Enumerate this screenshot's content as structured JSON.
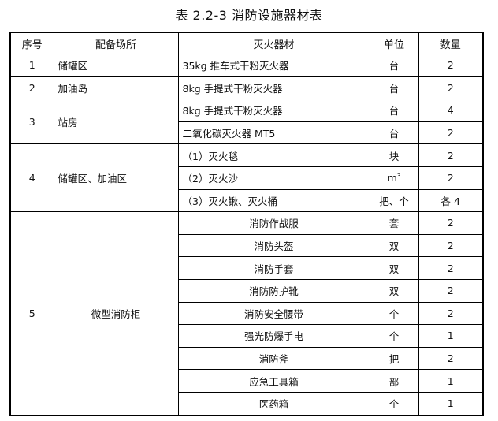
{
  "title": "表 2.2-3 消防设施器材表",
  "headers": [
    "序号",
    "配备场所",
    "灭火器材",
    "单位",
    "数量"
  ],
  "rows": [
    {
      "no": "1",
      "place": "储罐区",
      "items": [
        {
          "name": "35kg 推车式干粉灭火器",
          "unit": "台",
          "qty": "2"
        }
      ]
    },
    {
      "no": "2",
      "place": "加油岛",
      "items": [
        {
          "name": "8kg 手提式干粉灭火器",
          "unit": "台",
          "qty": "2"
        }
      ]
    },
    {
      "no": "3",
      "place": "站房",
      "items": [
        {
          "name": "8kg 手提式干粉灭火器",
          "unit": "台",
          "qty": "4"
        },
        {
          "name": "二氧化碳灭火器 MT5",
          "unit": "台",
          "qty": "2"
        }
      ]
    },
    {
      "no": "4",
      "place": "储罐区、加油区",
      "items": [
        {
          "name": "（1）灭火毯",
          "unit": "块",
          "qty": "2"
        },
        {
          "name": "（2）灭火沙",
          "unit": "m",
          "unit_sup": "3",
          "qty": "2"
        },
        {
          "name": "（3）灭火锹、灭火桶",
          "unit": "把、个",
          "qty": "各 4"
        }
      ]
    },
    {
      "no": "5",
      "place": "微型消防柜",
      "items": [
        {
          "name": "消防作战服",
          "unit": "套",
          "qty": "2"
        },
        {
          "name": "消防头盔",
          "unit": "双",
          "qty": "2"
        },
        {
          "name": "消防手套",
          "unit": "双",
          "qty": "2"
        },
        {
          "name": "消防防护靴",
          "unit": "双",
          "qty": "2"
        },
        {
          "name": "消防安全腰带",
          "unit": "个",
          "qty": "2"
        },
        {
          "name": "强光防爆手电",
          "unit": "个",
          "qty": "1"
        },
        {
          "name": "消防斧",
          "unit": "把",
          "qty": "2"
        },
        {
          "name": "应急工具箱",
          "unit": "部",
          "qty": "1"
        },
        {
          "name": "医药箱",
          "unit": "个",
          "qty": "1"
        }
      ]
    }
  ]
}
